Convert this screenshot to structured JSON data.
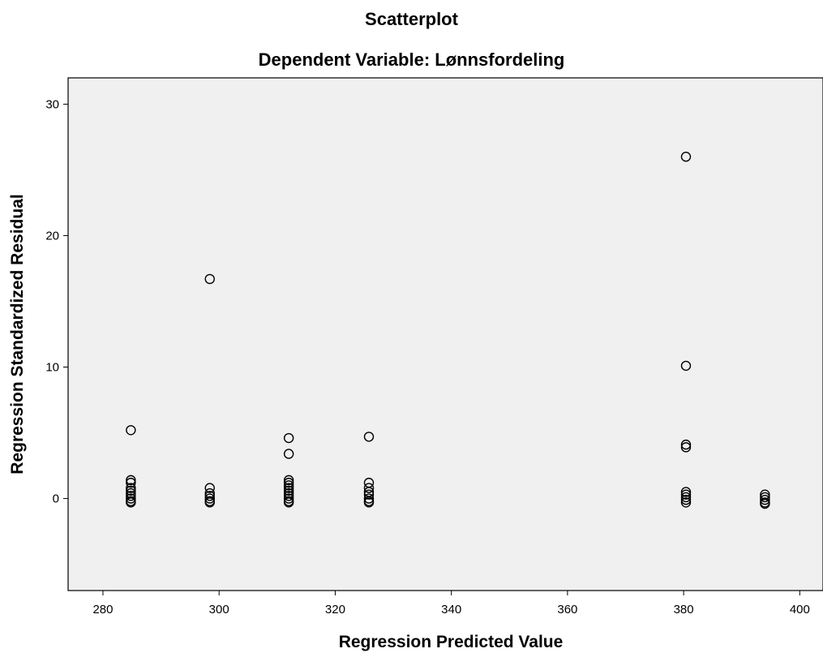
{
  "chart_data": {
    "type": "scatter",
    "title": "Scatterplot",
    "subtitle": "Dependent Variable: Lønnsfordeling",
    "xlabel": "Regression Predicted Value",
    "ylabel": "Regression Standardized Residual",
    "xlim": [
      274,
      404
    ],
    "ylim": [
      -7,
      32
    ],
    "xticks": [
      "280",
      "300",
      "320",
      "340",
      "360",
      "380",
      "400"
    ],
    "yticks": [
      "0",
      "10",
      "20",
      "30"
    ],
    "grid": false,
    "marker": "open-circle",
    "series": [
      {
        "points": [
          [
            284.8,
            5.2
          ],
          [
            284.8,
            1.4
          ],
          [
            284.8,
            1.2
          ],
          [
            284.8,
            0.8
          ],
          [
            284.8,
            0.6
          ],
          [
            284.8,
            0.4
          ],
          [
            284.8,
            0.2
          ],
          [
            284.8,
            0.0
          ],
          [
            284.8,
            -0.2
          ],
          [
            284.8,
            -0.3
          ],
          [
            298.4,
            16.7
          ],
          [
            298.4,
            0.8
          ],
          [
            298.4,
            0.4
          ],
          [
            298.4,
            0.2
          ],
          [
            298.4,
            0.0
          ],
          [
            298.4,
            -0.2
          ],
          [
            298.4,
            -0.3
          ],
          [
            312.0,
            4.6
          ],
          [
            312.0,
            3.4
          ],
          [
            312.0,
            1.4
          ],
          [
            312.0,
            1.2
          ],
          [
            312.0,
            1.0
          ],
          [
            312.0,
            0.8
          ],
          [
            312.0,
            0.6
          ],
          [
            312.0,
            0.4
          ],
          [
            312.0,
            0.2
          ],
          [
            312.0,
            0.0
          ],
          [
            312.0,
            -0.2
          ],
          [
            312.0,
            -0.3
          ],
          [
            325.8,
            4.7
          ],
          [
            325.8,
            1.2
          ],
          [
            325.8,
            0.8
          ],
          [
            325.8,
            0.5
          ],
          [
            325.8,
            0.3
          ],
          [
            325.8,
            0.0
          ],
          [
            325.8,
            -0.2
          ],
          [
            325.8,
            -0.3
          ],
          [
            380.4,
            26.0
          ],
          [
            380.4,
            10.1
          ],
          [
            380.4,
            4.1
          ],
          [
            380.4,
            3.9
          ],
          [
            380.4,
            0.5
          ],
          [
            380.4,
            0.3
          ],
          [
            380.4,
            0.1
          ],
          [
            380.4,
            -0.1
          ],
          [
            380.4,
            -0.3
          ],
          [
            394.0,
            0.3
          ],
          [
            394.0,
            0.1
          ],
          [
            394.0,
            -0.1
          ],
          [
            394.0,
            -0.3
          ],
          [
            394.0,
            -0.4
          ]
        ]
      }
    ]
  }
}
